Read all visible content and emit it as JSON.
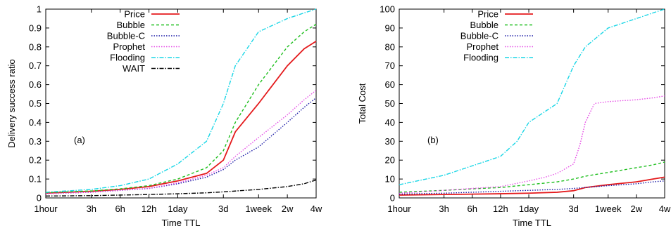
{
  "chart_data": [
    {
      "type": "line",
      "panel_label": "(a)",
      "xlabel": "Time TTL",
      "ylabel": "Delivery success ratio",
      "x_scale": "log",
      "x_unit": "hours",
      "xlim": [
        1,
        672
      ],
      "ylim": [
        0,
        1
      ],
      "xticks": [
        {
          "value": 1,
          "label": "1hour"
        },
        {
          "value": 3,
          "label": "3h"
        },
        {
          "value": 6,
          "label": "6h"
        },
        {
          "value": 12,
          "label": "12h"
        },
        {
          "value": 24,
          "label": "1day"
        },
        {
          "value": 72,
          "label": "3d"
        },
        {
          "value": 168,
          "label": "1week"
        },
        {
          "value": 336,
          "label": "2w"
        },
        {
          "value": 672,
          "label": "4w"
        }
      ],
      "yticks": [
        {
          "value": 0,
          "label": "0"
        },
        {
          "value": 0.1,
          "label": "0.1"
        },
        {
          "value": 0.2,
          "label": "0.2"
        },
        {
          "value": 0.3,
          "label": "0.3"
        },
        {
          "value": 0.4,
          "label": "0.4"
        },
        {
          "value": 0.5,
          "label": "0.5"
        },
        {
          "value": 0.6,
          "label": "0.6"
        },
        {
          "value": 0.7,
          "label": "0.7"
        },
        {
          "value": 0.8,
          "label": "0.8"
        },
        {
          "value": 0.9,
          "label": "0.9"
        },
        {
          "value": 1,
          "label": "1"
        }
      ],
      "legend_position": "top-left",
      "series": [
        {
          "name": "Price",
          "color": "#e41a1c",
          "dash": "solid",
          "points": [
            [
              1,
              0.025
            ],
            [
              3,
              0.035
            ],
            [
              6,
              0.045
            ],
            [
              12,
              0.06
            ],
            [
              24,
              0.09
            ],
            [
              48,
              0.13
            ],
            [
              72,
              0.2
            ],
            [
              96,
              0.35
            ],
            [
              168,
              0.5
            ],
            [
              336,
              0.7
            ],
            [
              504,
              0.79
            ],
            [
              672,
              0.83
            ]
          ]
        },
        {
          "name": "Bubble",
          "color": "#1fbf1f",
          "dash": "dash",
          "points": [
            [
              1,
              0.028
            ],
            [
              3,
              0.037
            ],
            [
              6,
              0.048
            ],
            [
              12,
              0.065
            ],
            [
              24,
              0.1
            ],
            [
              48,
              0.16
            ],
            [
              72,
              0.25
            ],
            [
              96,
              0.4
            ],
            [
              168,
              0.6
            ],
            [
              336,
              0.8
            ],
            [
              504,
              0.88
            ],
            [
              672,
              0.92
            ]
          ]
        },
        {
          "name": "Bubble-C",
          "color": "#1a1aa6",
          "dash": "dot",
          "points": [
            [
              1,
              0.022
            ],
            [
              3,
              0.03
            ],
            [
              6,
              0.04
            ],
            [
              12,
              0.05
            ],
            [
              24,
              0.075
            ],
            [
              48,
              0.11
            ],
            [
              72,
              0.15
            ],
            [
              96,
              0.2
            ],
            [
              168,
              0.27
            ],
            [
              336,
              0.4
            ],
            [
              504,
              0.48
            ],
            [
              672,
              0.53
            ]
          ]
        },
        {
          "name": "Prophet",
          "color": "#e64de6",
          "dash": "dot",
          "points": [
            [
              1,
              0.022
            ],
            [
              3,
              0.03
            ],
            [
              6,
              0.04
            ],
            [
              12,
              0.05
            ],
            [
              24,
              0.08
            ],
            [
              48,
              0.12
            ],
            [
              72,
              0.16
            ],
            [
              96,
              0.22
            ],
            [
              168,
              0.32
            ],
            [
              336,
              0.44
            ],
            [
              504,
              0.52
            ],
            [
              672,
              0.57
            ]
          ]
        },
        {
          "name": "Flooding",
          "color": "#18d6e6",
          "dash": "dashdot",
          "points": [
            [
              1,
              0.03
            ],
            [
              3,
              0.045
            ],
            [
              6,
              0.065
            ],
            [
              12,
              0.1
            ],
            [
              24,
              0.18
            ],
            [
              48,
              0.3
            ],
            [
              72,
              0.5
            ],
            [
              96,
              0.7
            ],
            [
              168,
              0.88
            ],
            [
              336,
              0.95
            ],
            [
              504,
              0.98
            ],
            [
              672,
              1.0
            ]
          ]
        },
        {
          "name": "WAIT",
          "color": "#000000",
          "dash": "dashdot",
          "points": [
            [
              1,
              0.01
            ],
            [
              3,
              0.012
            ],
            [
              6,
              0.015
            ],
            [
              12,
              0.018
            ],
            [
              24,
              0.022
            ],
            [
              48,
              0.027
            ],
            [
              72,
              0.032
            ],
            [
              168,
              0.045
            ],
            [
              336,
              0.06
            ],
            [
              504,
              0.075
            ],
            [
              672,
              0.095
            ]
          ]
        }
      ]
    },
    {
      "type": "line",
      "panel_label": "(b)",
      "xlabel": "Time TTL",
      "ylabel": "Total Cost",
      "x_scale": "log",
      "x_unit": "hours",
      "xlim": [
        1,
        672
      ],
      "ylim": [
        0,
        100
      ],
      "xticks": [
        {
          "value": 1,
          "label": "1hour"
        },
        {
          "value": 3,
          "label": "3h"
        },
        {
          "value": 6,
          "label": "6h"
        },
        {
          "value": 12,
          "label": "12h"
        },
        {
          "value": 24,
          "label": "1day"
        },
        {
          "value": 72,
          "label": "3d"
        },
        {
          "value": 168,
          "label": "1week"
        },
        {
          "value": 336,
          "label": "2w"
        },
        {
          "value": 672,
          "label": "4w"
        }
      ],
      "yticks": [
        {
          "value": 0,
          "label": "0"
        },
        {
          "value": 10,
          "label": "10"
        },
        {
          "value": 20,
          "label": "20"
        },
        {
          "value": 30,
          "label": "30"
        },
        {
          "value": 40,
          "label": "40"
        },
        {
          "value": 50,
          "label": "50"
        },
        {
          "value": 60,
          "label": "60"
        },
        {
          "value": 70,
          "label": "70"
        },
        {
          "value": 80,
          "label": "80"
        },
        {
          "value": 90,
          "label": "90"
        },
        {
          "value": 100,
          "label": "100"
        }
      ],
      "legend_position": "top-left",
      "series": [
        {
          "name": "Price",
          "color": "#e41a1c",
          "dash": "solid",
          "points": [
            [
              1,
              1.5
            ],
            [
              3,
              1.8
            ],
            [
              6,
              2
            ],
            [
              12,
              2.2
            ],
            [
              24,
              2.5
            ],
            [
              48,
              3
            ],
            [
              72,
              3.8
            ],
            [
              96,
              5.5
            ],
            [
              168,
              7
            ],
            [
              336,
              8.5
            ],
            [
              504,
              10
            ],
            [
              672,
              11
            ]
          ]
        },
        {
          "name": "Bubble",
          "color": "#1fbf1f",
          "dash": "dash",
          "points": [
            [
              1,
              3
            ],
            [
              3,
              4
            ],
            [
              6,
              4.8
            ],
            [
              12,
              5.5
            ],
            [
              24,
              7
            ],
            [
              48,
              8.5
            ],
            [
              72,
              10
            ],
            [
              96,
              11.5
            ],
            [
              168,
              13.5
            ],
            [
              336,
              16
            ],
            [
              504,
              17.5
            ],
            [
              672,
              19
            ]
          ]
        },
        {
          "name": "Bubble-C",
          "color": "#1a1aa6",
          "dash": "dot",
          "points": [
            [
              1,
              2
            ],
            [
              3,
              2.5
            ],
            [
              6,
              3
            ],
            [
              12,
              3.5
            ],
            [
              24,
              4
            ],
            [
              48,
              4.5
            ],
            [
              72,
              5
            ],
            [
              96,
              5.5
            ],
            [
              168,
              6.5
            ],
            [
              336,
              7.5
            ],
            [
              504,
              8.5
            ],
            [
              672,
              9
            ]
          ]
        },
        {
          "name": "Prophet",
          "color": "#e64de6",
          "dash": "dot",
          "points": [
            [
              1,
              2.5
            ],
            [
              3,
              4
            ],
            [
              6,
              5
            ],
            [
              12,
              6
            ],
            [
              24,
              9
            ],
            [
              36,
              11
            ],
            [
              48,
              13
            ],
            [
              72,
              18
            ],
            [
              84,
              28
            ],
            [
              96,
              40
            ],
            [
              120,
              50
            ],
            [
              168,
              51
            ],
            [
              336,
              52
            ],
            [
              504,
              53
            ],
            [
              672,
              54
            ]
          ]
        },
        {
          "name": "Flooding",
          "color": "#18d6e6",
          "dash": "dashdot",
          "points": [
            [
              1,
              7
            ],
            [
              3,
              12
            ],
            [
              6,
              17
            ],
            [
              12,
              22
            ],
            [
              18,
              30
            ],
            [
              24,
              40
            ],
            [
              48,
              50
            ],
            [
              72,
              70
            ],
            [
              96,
              80
            ],
            [
              168,
              90
            ],
            [
              336,
              95
            ],
            [
              504,
              98
            ],
            [
              672,
              100
            ]
          ]
        }
      ]
    }
  ]
}
